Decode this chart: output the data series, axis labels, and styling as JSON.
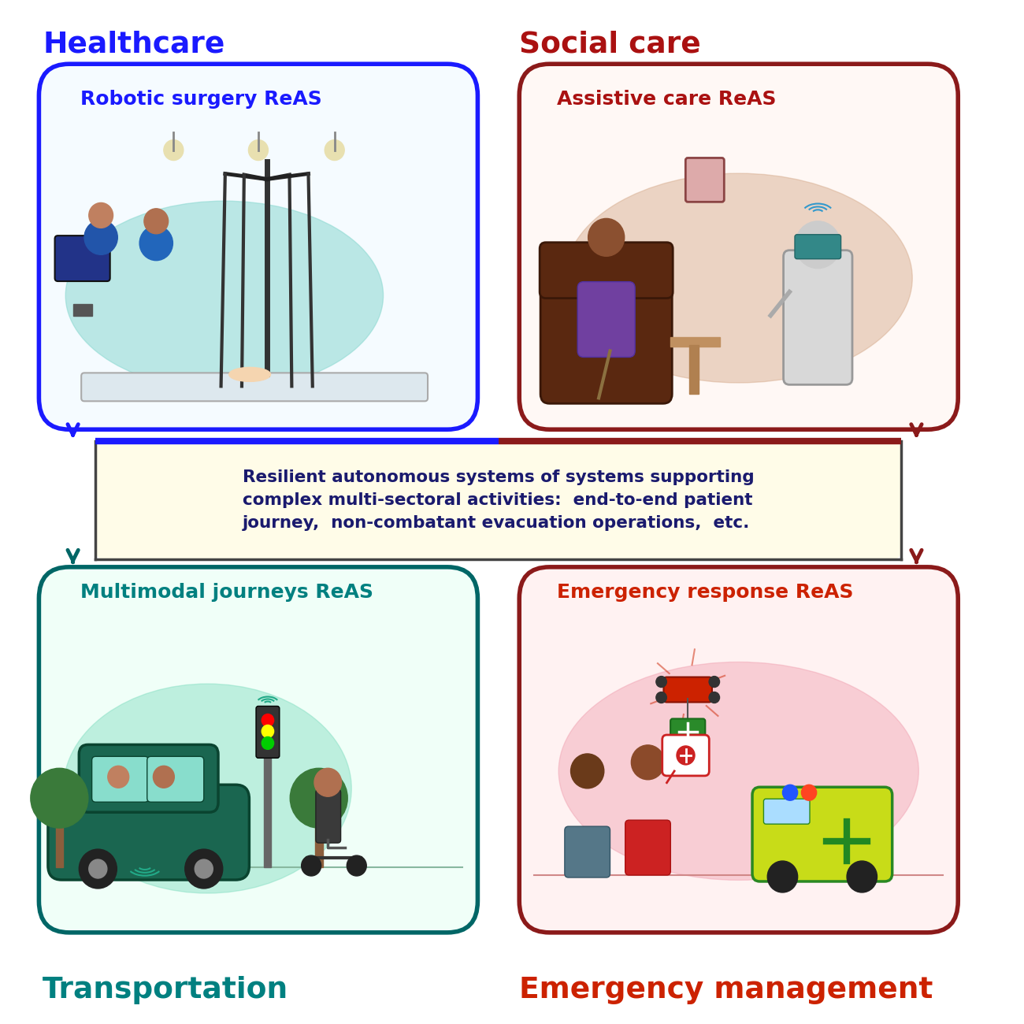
{
  "bg_color": "#ffffff",
  "box_top_left": {
    "label": "Robotic surgery ReAS",
    "sector": "Healthcare",
    "sector_color": "#1a1aff",
    "box_color": "#1a1aff",
    "label_color": "#1a1aff"
  },
  "box_top_right": {
    "label": "Assistive care ReAS",
    "sector": "Social care",
    "sector_color": "#aa1111",
    "box_color": "#8b1a1a",
    "label_color": "#aa1111"
  },
  "box_bot_left": {
    "label": "Multimodal journeys ReAS",
    "sector": "Transportation",
    "sector_color": "#008080",
    "box_color": "#006666",
    "label_color": "#008080"
  },
  "box_bot_right": {
    "label": "Emergency response ReAS",
    "sector": "Emergency management",
    "sector_color": "#cc2200",
    "box_color": "#8b1a1a",
    "label_color": "#cc2200"
  },
  "center_box": {
    "bg": "#fffce8",
    "border_left": "#1a1aff",
    "border_right": "#8b1a1a",
    "text_color": "#1a1a6e",
    "text": "Resilient autonomous systems of systems supporting\ncomplex multi-sectoral activities:  end-to-end patient\njourney,  non-combatant evacuation operations,  etc."
  }
}
